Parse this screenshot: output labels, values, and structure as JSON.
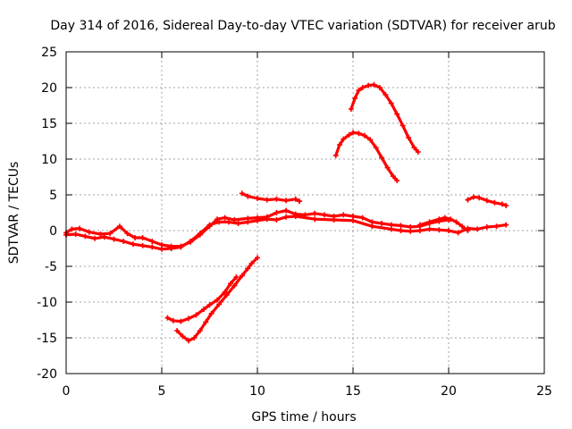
{
  "chart_data": {
    "type": "line",
    "title": "Day 314 of 2016, Sidereal Day-to-day VTEC variation (SDTVAR) for receiver arub",
    "xlabel": "GPS time / hours",
    "ylabel": "SDTVAR / TECUs",
    "xlim": [
      0,
      25
    ],
    "ylim": [
      -20,
      25
    ],
    "xticks": [
      0,
      5,
      10,
      15,
      20,
      25
    ],
    "yticks": [
      -20,
      -15,
      -10,
      -5,
      0,
      5,
      10,
      15,
      20,
      25
    ],
    "grid": true,
    "color": "#ff0000",
    "series": [
      {
        "name": "main-band-upper",
        "x": [
          0,
          0.3,
          0.7,
          1.2,
          1.8,
          2.3,
          2.8,
          3.2,
          3.6,
          4.0,
          4.5,
          5.0,
          5.5,
          6.0,
          6.5,
          7.0,
          7.5,
          7.9,
          8.3,
          8.8,
          9.5,
          10.0,
          10.5,
          11.0,
          11.5,
          12.0,
          12.5,
          13.0,
          13.5,
          14.0,
          14.5,
          15.0,
          15.5,
          16.0,
          16.5,
          17.0,
          17.5,
          18.0,
          18.5,
          19.0,
          19.5,
          20.0
        ],
        "values": [
          -0.3,
          0.2,
          0.3,
          -0.2,
          -0.5,
          -0.4,
          0.6,
          -0.4,
          -1.0,
          -1.0,
          -1.5,
          -2.0,
          -2.2,
          -2.2,
          -1.6,
          -0.6,
          0.6,
          1.6,
          1.8,
          1.5,
          1.7,
          1.8,
          1.9,
          2.5,
          2.8,
          2.3,
          2.2,
          2.4,
          2.2,
          2.0,
          2.2,
          2.0,
          1.8,
          1.2,
          1.0,
          0.8,
          0.7,
          0.5,
          0.6,
          1.0,
          1.3,
          1.5
        ]
      },
      {
        "name": "main-band-lower",
        "x": [
          0,
          0.5,
          1.0,
          1.5,
          2.0,
          2.5,
          3.0,
          3.5,
          4.0,
          4.5,
          5.0,
          5.5,
          6.0,
          6.5,
          7.0,
          7.5,
          8.0,
          8.5,
          9.0,
          9.5,
          10.0,
          10.5,
          11.0,
          11.5,
          12.0,
          13.0,
          14.0,
          15.0,
          16.0,
          17.0,
          17.5,
          18.0,
          18.5,
          19.0,
          19.5,
          20.0,
          20.5,
          21.0,
          21.5,
          22.0,
          22.5,
          23.0
        ],
        "values": [
          -0.6,
          -0.5,
          -0.8,
          -1.1,
          -0.9,
          -1.2,
          -1.5,
          -1.9,
          -2.1,
          -2.3,
          -2.6,
          -2.5,
          -2.3,
          -1.5,
          -0.4,
          0.8,
          1.2,
          1.2,
          1.0,
          1.2,
          1.4,
          1.6,
          1.5,
          1.9,
          2.0,
          1.6,
          1.5,
          1.4,
          0.6,
          0.2,
          0.0,
          -0.1,
          0.0,
          0.2,
          0.1,
          0.0,
          -0.3,
          0.3,
          0.2,
          0.5,
          0.6,
          0.8
        ]
      },
      {
        "name": "arc-top",
        "x": [
          14.9,
          15.1,
          15.3,
          15.5,
          15.8,
          16.1,
          16.4,
          16.7,
          17.0,
          17.3,
          17.6,
          17.9,
          18.2,
          18.4
        ],
        "values": [
          17.0,
          18.5,
          19.6,
          20.0,
          20.3,
          20.4,
          20.0,
          19.0,
          17.8,
          16.3,
          14.7,
          13.0,
          11.6,
          11.0
        ]
      },
      {
        "name": "arc-middle",
        "x": [
          14.1,
          14.3,
          14.5,
          14.8,
          15.0,
          15.3,
          15.6,
          15.9,
          16.2,
          16.5,
          16.8,
          17.1,
          17.3
        ],
        "values": [
          10.5,
          12.0,
          12.8,
          13.4,
          13.7,
          13.6,
          13.3,
          12.7,
          11.6,
          10.2,
          8.8,
          7.6,
          7.0
        ]
      },
      {
        "name": "segment-plus5-left",
        "x": [
          9.2,
          9.5,
          10.0,
          10.5,
          11.0,
          11.5,
          12.0,
          12.2
        ],
        "values": [
          5.2,
          4.8,
          4.5,
          4.3,
          4.4,
          4.2,
          4.4,
          4.1
        ]
      },
      {
        "name": "segment-plus5-right",
        "x": [
          21.0,
          21.3,
          21.6,
          22.0,
          22.4,
          22.8,
          23.0
        ],
        "values": [
          4.3,
          4.7,
          4.6,
          4.2,
          3.9,
          3.7,
          3.5
        ]
      },
      {
        "name": "negative-lower",
        "x": [
          5.8,
          6.1,
          6.4,
          6.7,
          7.0,
          7.3,
          7.6,
          8.0,
          8.4,
          8.8,
          9.2,
          9.5,
          9.7,
          10.0
        ],
        "values": [
          -14.0,
          -14.8,
          -15.4,
          -15.0,
          -14.0,
          -12.8,
          -11.6,
          -10.3,
          -9.0,
          -7.7,
          -6.3,
          -5.3,
          -4.6,
          -3.8
        ]
      },
      {
        "name": "negative-upper",
        "x": [
          5.3,
          5.6,
          6.0,
          6.4,
          6.8,
          7.2,
          7.5,
          7.9,
          8.3,
          8.6,
          8.9
        ],
        "values": [
          -12.2,
          -12.6,
          -12.7,
          -12.3,
          -11.8,
          -11.0,
          -10.4,
          -9.7,
          -8.6,
          -7.4,
          -6.5
        ]
      },
      {
        "name": "hump-around-20",
        "x": [
          18.5,
          19.0,
          19.5,
          19.8,
          20.1,
          20.4,
          20.7,
          21.0
        ],
        "values": [
          0.8,
          1.2,
          1.6,
          1.8,
          1.6,
          1.2,
          0.6,
          0.0
        ]
      }
    ]
  }
}
